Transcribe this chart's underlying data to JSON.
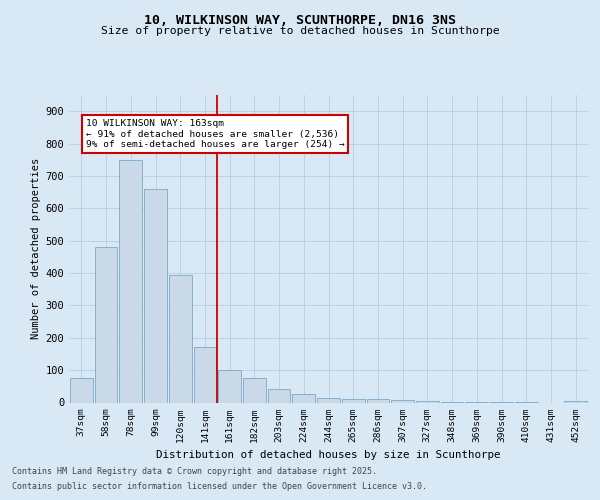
{
  "title1": "10, WILKINSON WAY, SCUNTHORPE, DN16 3NS",
  "title2": "Size of property relative to detached houses in Scunthorpe",
  "xlabel": "Distribution of detached houses by size in Scunthorpe",
  "ylabel": "Number of detached properties",
  "categories": [
    "37sqm",
    "58sqm",
    "78sqm",
    "99sqm",
    "120sqm",
    "141sqm",
    "161sqm",
    "182sqm",
    "203sqm",
    "224sqm",
    "244sqm",
    "265sqm",
    "286sqm",
    "307sqm",
    "327sqm",
    "348sqm",
    "369sqm",
    "390sqm",
    "410sqm",
    "431sqm",
    "452sqm"
  ],
  "values": [
    75,
    480,
    750,
    660,
    395,
    170,
    100,
    75,
    43,
    27,
    13,
    11,
    10,
    7,
    5,
    3,
    2,
    2,
    1,
    0,
    5
  ],
  "bar_color": "#c9d9e8",
  "bar_edge_color": "#7aa8c7",
  "vline_index": 6,
  "vline_color": "#cc0000",
  "annotation_line1": "10 WILKINSON WAY: 163sqm",
  "annotation_line2": "← 91% of detached houses are smaller (2,536)",
  "annotation_line3": "9% of semi-detached houses are larger (254) →",
  "annotation_box_facecolor": "#ffffff",
  "annotation_box_edgecolor": "#cc0000",
  "background_color": "#d9e8f5",
  "footer1": "Contains HM Land Registry data © Crown copyright and database right 2025.",
  "footer2": "Contains public sector information licensed under the Open Government Licence v3.0.",
  "ylim": [
    0,
    950
  ],
  "yticks": [
    0,
    100,
    200,
    300,
    400,
    500,
    600,
    700,
    800,
    900
  ]
}
